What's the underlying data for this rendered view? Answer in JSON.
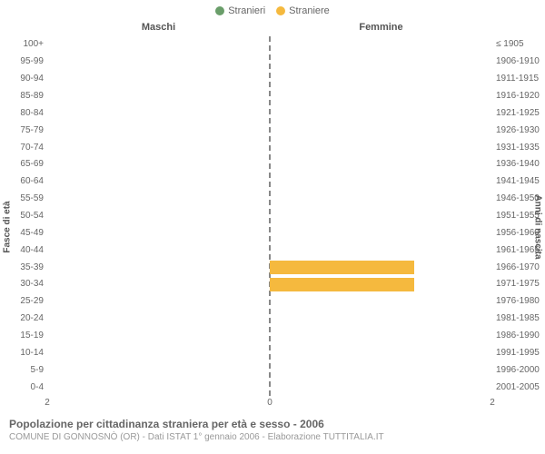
{
  "legend": {
    "items": [
      {
        "label": "Stranieri",
        "color": "#6a9e6a"
      },
      {
        "label": "Straniere",
        "color": "#f5b93e"
      }
    ]
  },
  "column_headers": {
    "left": "Maschi",
    "right": "Femmine"
  },
  "axis_labels": {
    "left": "Fasce di età",
    "right": "Anni di nascita"
  },
  "chart": {
    "type": "population-pyramid",
    "x_max": 2,
    "x_ticks": [
      2,
      0,
      2
    ],
    "bar_color_male": "#6a9e6a",
    "bar_color_female": "#f5b93e",
    "background": "#ffffff",
    "center_line_color": "#888888",
    "grid_color": "#e6e6e6",
    "rows": [
      {
        "age": "100+",
        "birth": "≤ 1905",
        "male": 0,
        "female": 0
      },
      {
        "age": "95-99",
        "birth": "1906-1910",
        "male": 0,
        "female": 0
      },
      {
        "age": "90-94",
        "birth": "1911-1915",
        "male": 0,
        "female": 0
      },
      {
        "age": "85-89",
        "birth": "1916-1920",
        "male": 0,
        "female": 0
      },
      {
        "age": "80-84",
        "birth": "1921-1925",
        "male": 0,
        "female": 0
      },
      {
        "age": "75-79",
        "birth": "1926-1930",
        "male": 0,
        "female": 0
      },
      {
        "age": "70-74",
        "birth": "1931-1935",
        "male": 0,
        "female": 0
      },
      {
        "age": "65-69",
        "birth": "1936-1940",
        "male": 0,
        "female": 0
      },
      {
        "age": "60-64",
        "birth": "1941-1945",
        "male": 0,
        "female": 0
      },
      {
        "age": "55-59",
        "birth": "1946-1950",
        "male": 0,
        "female": 0
      },
      {
        "age": "50-54",
        "birth": "1951-1955",
        "male": 0,
        "female": 0
      },
      {
        "age": "45-49",
        "birth": "1956-1960",
        "male": 0,
        "female": 0
      },
      {
        "age": "40-44",
        "birth": "1961-1965",
        "male": 0,
        "female": 0
      },
      {
        "age": "35-39",
        "birth": "1966-1970",
        "male": 0,
        "female": 1.3
      },
      {
        "age": "30-34",
        "birth": "1971-1975",
        "male": 0,
        "female": 1.3
      },
      {
        "age": "25-29",
        "birth": "1976-1980",
        "male": 0,
        "female": 0
      },
      {
        "age": "20-24",
        "birth": "1981-1985",
        "male": 0,
        "female": 0
      },
      {
        "age": "15-19",
        "birth": "1986-1990",
        "male": 0,
        "female": 0
      },
      {
        "age": "10-14",
        "birth": "1991-1995",
        "male": 0,
        "female": 0
      },
      {
        "age": "5-9",
        "birth": "1996-2000",
        "male": 0,
        "female": 0
      },
      {
        "age": "0-4",
        "birth": "2001-2005",
        "male": 0,
        "female": 0
      }
    ]
  },
  "footer": {
    "title": "Popolazione per cittadinanza straniera per età e sesso - 2006",
    "subtitle": "COMUNE DI GONNOSNÒ (OR) - Dati ISTAT 1° gennaio 2006 - Elaborazione TUTTITALIA.IT"
  }
}
